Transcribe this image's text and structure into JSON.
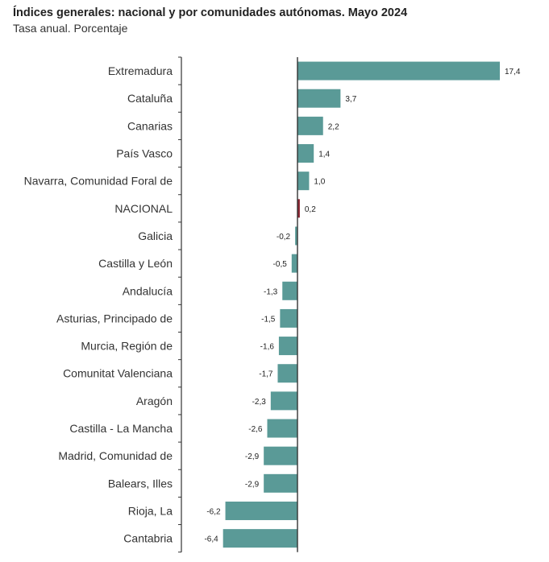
{
  "chart_data": {
    "type": "bar",
    "orientation": "horizontal",
    "title": "Índices generales: nacional y por comunidades autónomas. Mayo 2024",
    "subtitle": "Tasa anual. Porcentaje",
    "categories": [
      "Extremadura",
      "Cataluña",
      "Canarias",
      "País Vasco",
      "Navarra, Comunidad Foral de",
      "NACIONAL",
      "Galicia",
      "Castilla y León",
      "Andalucía",
      "Asturias, Principado de",
      "Murcia, Región de",
      "Comunitat Valenciana",
      "Aragón",
      "Castilla - La Mancha",
      "Madrid, Comunidad de",
      "Balears, Illes",
      "Rioja, La",
      "Cantabria"
    ],
    "values": [
      17.4,
      3.7,
      2.2,
      1.4,
      1.0,
      0.2,
      -0.2,
      -0.5,
      -1.3,
      -1.5,
      -1.6,
      -1.7,
      -2.3,
      -2.6,
      -2.9,
      -2.9,
      -6.2,
      -6.4
    ],
    "value_labels": [
      "17,4",
      "3,7",
      "2,2",
      "1,4",
      "1,0",
      "0,2",
      "-0,2",
      "-0,5",
      "-1,3",
      "-1,5",
      "-1,6",
      "-1,7",
      "-2,3",
      "-2,6",
      "-2,9",
      "-2,9",
      "-6,2",
      "-6,4"
    ],
    "highlight_category": "NACIONAL",
    "colors": {
      "bar": "#5a9a97",
      "highlight": "#8b2430",
      "axis": "#333333"
    },
    "grid": false,
    "legend": "none"
  }
}
